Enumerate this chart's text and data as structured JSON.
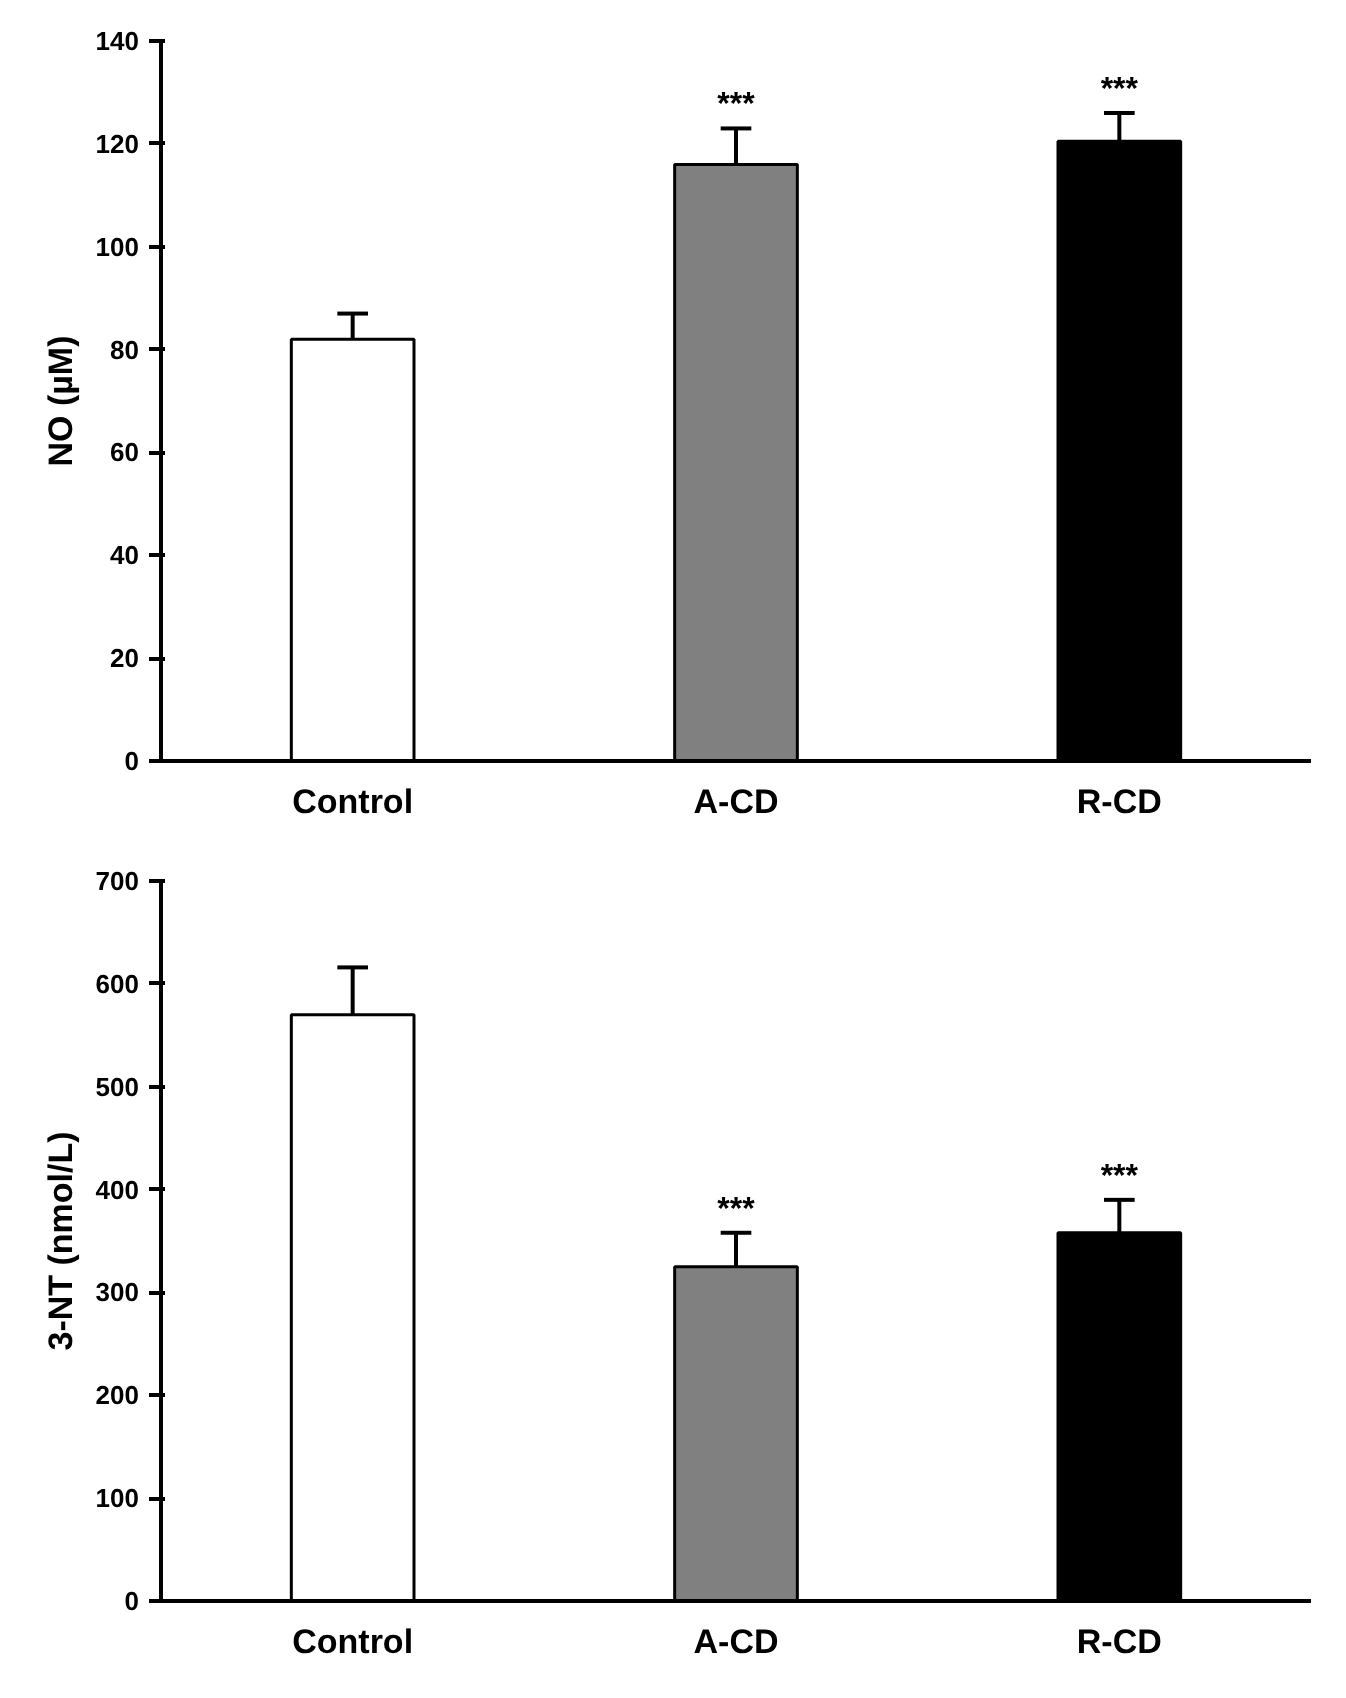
{
  "chart_data": [
    {
      "type": "bar",
      "ylabel": "NO (µM)",
      "categories": [
        "Control",
        "A-CD",
        "R-CD"
      ],
      "values": [
        82,
        116,
        120.5
      ],
      "colors": [
        "#ffffff",
        "#808080",
        "#000000"
      ],
      "errors": [
        [
          82,
          87
        ],
        [
          116,
          123
        ],
        [
          120.5,
          126
        ]
      ],
      "ylim": [
        0,
        140
      ],
      "yticks": [
        0,
        20,
        40,
        60,
        80,
        100,
        120,
        140
      ],
      "grid": false,
      "annotations": [
        {
          "text": "***",
          "x": "A-CD",
          "y": 123
        },
        {
          "text": "***",
          "x": "R-CD",
          "y": 126
        }
      ]
    },
    {
      "type": "bar",
      "ylabel": "3-NT (nmol/L)",
      "categories": [
        "Control",
        "A-CD",
        "R-CD"
      ],
      "values": [
        570,
        325,
        358
      ],
      "colors": [
        "#ffffff",
        "#808080",
        "#000000"
      ],
      "errors": [
        [
          570,
          616
        ],
        [
          325,
          358
        ],
        [
          358,
          390
        ]
      ],
      "ylim": [
        0,
        700
      ],
      "yticks": [
        0,
        100,
        200,
        300,
        400,
        500,
        600,
        700
      ],
      "grid": false,
      "annotations": [
        {
          "text": "***",
          "x": "A-CD",
          "y": 358
        },
        {
          "text": "***",
          "x": "R-CD",
          "y": 390
        }
      ]
    }
  ]
}
